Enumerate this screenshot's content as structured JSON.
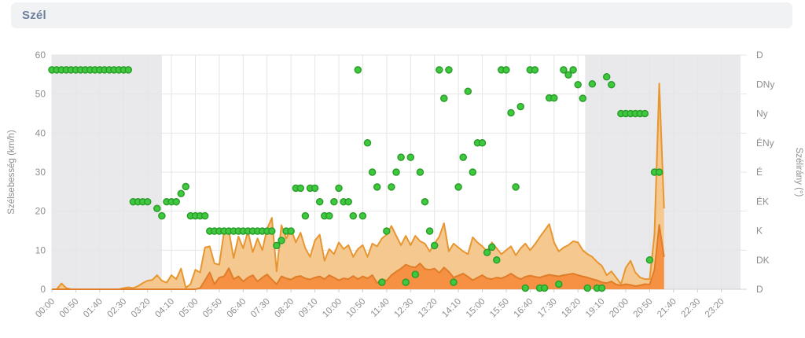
{
  "header": {
    "title": "Szél"
  },
  "chart": {
    "left_axis": {
      "title": "Szélsebesség (km/h)",
      "tick_labels": [
        "0",
        "10",
        "20",
        "30",
        "40",
        "50",
        "60"
      ]
    },
    "right_axis": {
      "title": "Szélirány (°)",
      "labels": [
        "D",
        "DNy",
        "Ny",
        "ÉNy",
        "É",
        "ÉK",
        "K",
        "DK",
        "D"
      ]
    },
    "x_axis": {
      "labels": [
        "00:00",
        "00:50",
        "01:40",
        "02:30",
        "03:20",
        "04:10",
        "05:00",
        "05:50",
        "06:40",
        "07:30",
        "08:20",
        "09:10",
        "10:00",
        "10:50",
        "11:40",
        "12:30",
        "13:20",
        "14:10",
        "15:00",
        "15:50",
        "16:40",
        "17:30",
        "18:20",
        "19:10",
        "20:00",
        "20:50",
        "21:40",
        "22:30",
        "23:20"
      ]
    }
  },
  "chart_data": {
    "type": "area",
    "title": "Szél",
    "x_unit": "minutes_since_midnight",
    "x_range": [
      0,
      1440
    ],
    "x_tick_interval_min": 50,
    "y_left_label": "Szélsebesség (km/h)",
    "y_left_range": [
      0,
      60
    ],
    "y_right_label": "Szélirány (°)",
    "y_right_categories_top_to_bottom": [
      "D",
      "DNy",
      "Ny",
      "ÉNy",
      "É",
      "ÉK",
      "K",
      "DK",
      "D"
    ],
    "grid": true,
    "legend": false,
    "night_bands_min": [
      [
        0,
        230
      ],
      [
        1115,
        1440
      ]
    ],
    "colors": {
      "night_fill": "#e9e9ec",
      "grid": "#e6e6e6",
      "axis_line": "#d0d0d0",
      "tick": "#cccccc",
      "axis_text": "#8e8e8e",
      "gust_fill": "#f5c88f",
      "gust_line": "#e8962f",
      "speed_fill": "#f69043",
      "speed_line": "#df7d28",
      "dot_fill": "#3fc93f",
      "dot_line": "#2b9d2b"
    },
    "series": [
      {
        "name": "wind_gust",
        "type": "area",
        "start_min": 0,
        "step_min": 10,
        "values": [
          0,
          0,
          1.5,
          0.3,
          0,
          0,
          0,
          0,
          0,
          0,
          0,
          0,
          0,
          0,
          0,
          0.3,
          0.5,
          0.3,
          0.8,
          1.6,
          2.2,
          2.4,
          3.6,
          2.2,
          1.7,
          3.6,
          2.6,
          5.3,
          0.4,
          1.3,
          5,
          4.3,
          10.7,
          11,
          6.6,
          6.3,
          14.7,
          15,
          8,
          13.5,
          10.5,
          14.8,
          9.5,
          13,
          10,
          15.5,
          18.3,
          4.6,
          16.4,
          13,
          15.5,
          12,
          14.5,
          10.5,
          8.3,
          12.5,
          14,
          7.3,
          10.3,
          9,
          12,
          10.3,
          11.3,
          8.3,
          10.3,
          11.3,
          8.3,
          11.7,
          11,
          13,
          14,
          16.2,
          13.7,
          11.3,
          13.7,
          11.3,
          13.7,
          12.3,
          11.7,
          9.7,
          11.7,
          13.5,
          16.9,
          9.7,
          11.7,
          10.7,
          9.7,
          9,
          13.3,
          12,
          11,
          9.7,
          12,
          10.5,
          9,
          10,
          11,
          8.7,
          10.5,
          11.7,
          10,
          11.5,
          13.3,
          15,
          16.7,
          12,
          9.7,
          10.7,
          11.3,
          12.3,
          12,
          10,
          9,
          8.3,
          7,
          6,
          3.6,
          4.6,
          3,
          1.3,
          5.5,
          7.3,
          4.3,
          3,
          2.6,
          2.6,
          14,
          52.7,
          20.7
        ]
      },
      {
        "name": "wind_speed",
        "type": "area",
        "start_min": 0,
        "step_min": 10,
        "values": [
          0,
          0,
          0,
          0,
          0,
          0,
          0,
          0,
          0,
          0,
          0,
          0,
          0,
          0,
          0,
          0,
          0,
          0,
          0,
          0,
          0,
          0,
          0,
          0,
          0,
          0,
          0,
          0,
          0,
          0,
          0,
          0.3,
          2.3,
          4.3,
          1.3,
          3,
          3.3,
          5.4,
          2.6,
          3.3,
          2,
          3,
          3.6,
          2,
          3,
          3.8,
          2.5,
          1.3,
          3.3,
          2.8,
          2.5,
          3.2,
          3.4,
          2.8,
          2.5,
          3,
          3.3,
          2.6,
          3.6,
          3,
          2.3,
          2.8,
          2.6,
          3.4,
          2.6,
          3.3,
          2.8,
          3.6,
          1.6,
          2.6,
          2.2,
          3.6,
          4.5,
          5.3,
          6.3,
          5.8,
          5.6,
          6.6,
          5.2,
          5,
          5.3,
          4.2,
          5.6,
          4.5,
          3,
          3.5,
          4,
          3.2,
          2.3,
          3,
          3.6,
          2.8,
          2.6,
          3,
          2.8,
          3.3,
          4,
          3.2,
          2.6,
          3.2,
          3.5,
          3.2,
          3,
          3.4,
          3.7,
          3.5,
          3.3,
          3.6,
          3.8,
          4,
          3.6,
          3.3,
          3,
          2.6,
          2.3,
          1.8,
          1.6,
          2,
          1.2,
          1,
          1.3,
          1.1,
          0.8,
          1,
          1.3,
          1.2,
          5,
          16.5,
          8.3
        ]
      },
      {
        "name": "wind_direction",
        "type": "scatter",
        "points": [
          [
            0,
            56.2
          ],
          [
            10,
            56.2
          ],
          [
            20,
            56.2
          ],
          [
            30,
            56.2
          ],
          [
            40,
            56.2
          ],
          [
            50,
            56.2
          ],
          [
            60,
            56.2
          ],
          [
            70,
            56.2
          ],
          [
            80,
            56.2
          ],
          [
            90,
            56.2
          ],
          [
            100,
            56.2
          ],
          [
            110,
            56.2
          ],
          [
            120,
            56.2
          ],
          [
            130,
            56.2
          ],
          [
            140,
            56.2
          ],
          [
            150,
            56.2
          ],
          [
            160,
            56.2
          ],
          [
            170,
            22.4
          ],
          [
            180,
            22.4
          ],
          [
            190,
            22.4
          ],
          [
            200,
            22.4
          ],
          [
            220,
            20.7
          ],
          [
            230,
            18.8
          ],
          [
            240,
            22.4
          ],
          [
            250,
            22.4
          ],
          [
            260,
            22.4
          ],
          [
            270,
            24.5
          ],
          [
            280,
            26.3
          ],
          [
            290,
            18.8
          ],
          [
            300,
            18.8
          ],
          [
            310,
            18.8
          ],
          [
            320,
            18.8
          ],
          [
            330,
            14.9
          ],
          [
            340,
            14.9
          ],
          [
            350,
            14.9
          ],
          [
            360,
            14.9
          ],
          [
            370,
            14.9
          ],
          [
            380,
            14.9
          ],
          [
            390,
            14.9
          ],
          [
            400,
            14.9
          ],
          [
            410,
            14.9
          ],
          [
            420,
            14.9
          ],
          [
            430,
            14.9
          ],
          [
            440,
            14.9
          ],
          [
            450,
            14.9
          ],
          [
            460,
            14.9
          ],
          [
            470,
            11.2
          ],
          [
            480,
            12.5
          ],
          [
            490,
            14.9
          ],
          [
            500,
            14.9
          ],
          [
            510,
            25.9
          ],
          [
            520,
            25.9
          ],
          [
            530,
            18.8
          ],
          [
            540,
            25.9
          ],
          [
            550,
            25.9
          ],
          [
            560,
            22.4
          ],
          [
            570,
            18.8
          ],
          [
            580,
            18.8
          ],
          [
            590,
            22.4
          ],
          [
            600,
            25.9
          ],
          [
            610,
            22.4
          ],
          [
            620,
            22.4
          ],
          [
            630,
            18.8
          ],
          [
            640,
            56.2
          ],
          [
            650,
            18.8
          ],
          [
            660,
            37.5
          ],
          [
            670,
            30
          ],
          [
            680,
            26.2
          ],
          [
            690,
            1.8
          ],
          [
            700,
            14.9
          ],
          [
            710,
            26.2
          ],
          [
            720,
            30
          ],
          [
            730,
            33.8
          ],
          [
            740,
            1.8
          ],
          [
            750,
            33.8
          ],
          [
            760,
            3.8
          ],
          [
            770,
            30
          ],
          [
            780,
            22.4
          ],
          [
            790,
            14.9
          ],
          [
            800,
            11.2
          ],
          [
            810,
            56.2
          ],
          [
            820,
            48.9
          ],
          [
            830,
            56.2
          ],
          [
            840,
            1.8
          ],
          [
            850,
            26.2
          ],
          [
            860,
            33.8
          ],
          [
            870,
            50.7
          ],
          [
            880,
            30
          ],
          [
            890,
            37.5
          ],
          [
            900,
            37.5
          ],
          [
            910,
            9.4
          ],
          [
            920,
            10.8
          ],
          [
            930,
            7.5
          ],
          [
            940,
            56.2
          ],
          [
            950,
            56.2
          ],
          [
            960,
            45.2
          ],
          [
            970,
            26.2
          ],
          [
            980,
            46.8
          ],
          [
            990,
            0.3
          ],
          [
            1000,
            56.2
          ],
          [
            1010,
            56.2
          ],
          [
            1020,
            0.3
          ],
          [
            1030,
            0.3
          ],
          [
            1040,
            49
          ],
          [
            1050,
            49
          ],
          [
            1060,
            1.3
          ],
          [
            1070,
            56.2
          ],
          [
            1080,
            54.9
          ],
          [
            1090,
            56.2
          ],
          [
            1100,
            52.4
          ],
          [
            1110,
            48.9
          ],
          [
            1120,
            0.3
          ],
          [
            1130,
            52.6
          ],
          [
            1140,
            0.3
          ],
          [
            1150,
            0.3
          ],
          [
            1160,
            54.4
          ],
          [
            1170,
            52.4
          ],
          [
            1190,
            45
          ],
          [
            1200,
            45
          ],
          [
            1210,
            45
          ],
          [
            1220,
            45
          ],
          [
            1230,
            45
          ],
          [
            1240,
            45
          ],
          [
            1250,
            7.5
          ],
          [
            1260,
            30
          ],
          [
            1270,
            30
          ]
        ]
      }
    ]
  }
}
